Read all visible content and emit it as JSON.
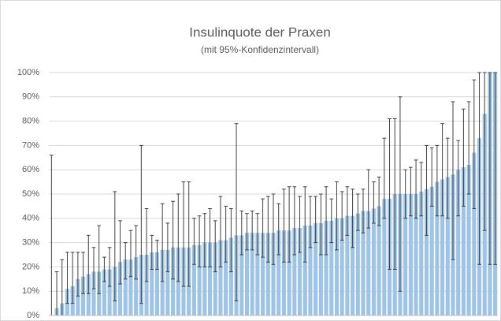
{
  "chart_data": {
    "type": "bar",
    "title": "Insulinquote der Praxen",
    "subtitle": "(mit  95%-Konfidenzintervall)",
    "color": "#9dc3e6",
    "error_color": "#404040",
    "grid": true,
    "ylim": [
      0,
      100
    ],
    "yticks": [
      {
        "value": 0,
        "label": "0%"
      },
      {
        "value": 10,
        "label": "10%"
      },
      {
        "value": 20,
        "label": "20%"
      },
      {
        "value": 30,
        "label": "30%"
      },
      {
        "value": 40,
        "label": "40%"
      },
      {
        "value": 50,
        "label": "50%"
      },
      {
        "value": 60,
        "label": "60%"
      },
      {
        "value": 70,
        "label": "70%"
      },
      {
        "value": 80,
        "label": "80%"
      },
      {
        "value": 90,
        "label": "90%"
      },
      {
        "value": 100,
        "label": "100%"
      }
    ],
    "categories": [
      null,
      null,
      null,
      null,
      null,
      null,
      null,
      null,
      null,
      null,
      null,
      null,
      null,
      null,
      null,
      null,
      null,
      null,
      null,
      null,
      null,
      null,
      null,
      null,
      null,
      null,
      null,
      null,
      null,
      null,
      null,
      null,
      null,
      null,
      null,
      null,
      null,
      null,
      null,
      null,
      null,
      null,
      null,
      null,
      null,
      null,
      null,
      null,
      null,
      null,
      null,
      null,
      null,
      null,
      null,
      null,
      null,
      null,
      null,
      null,
      null,
      null,
      null,
      null,
      null,
      null,
      null,
      null,
      null,
      null,
      null,
      null,
      null,
      null,
      null,
      null,
      null,
      null,
      null,
      null,
      null,
      null,
      null,
      null,
      null
    ],
    "values": [
      0,
      3,
      5,
      11,
      12,
      15,
      16,
      17,
      18,
      18,
      19,
      19,
      20,
      22,
      23,
      23,
      24,
      25,
      25,
      26,
      26,
      27,
      27,
      28,
      28,
      28,
      28,
      29,
      29,
      30,
      30,
      30,
      31,
      31,
      32,
      33,
      33,
      34,
      34,
      34,
      34,
      34,
      34,
      35,
      35,
      35,
      36,
      36,
      37,
      37,
      38,
      38,
      39,
      39,
      40,
      40,
      41,
      41,
      42,
      43,
      43,
      44,
      45,
      48,
      48,
      50,
      50,
      50,
      50,
      50,
      51,
      52,
      53,
      55,
      56,
      57,
      58,
      60,
      61,
      62,
      67,
      73,
      83,
      100,
      100
    ],
    "lower": [
      0,
      0,
      0,
      5,
      5,
      8,
      9,
      9,
      11,
      9,
      14,
      12,
      6,
      13,
      15,
      16,
      15,
      5,
      14,
      19,
      19,
      14,
      18,
      15,
      14,
      12,
      12,
      21,
      20,
      20,
      20,
      18,
      20,
      22,
      18,
      6,
      25,
      27,
      27,
      25,
      24,
      22,
      21,
      25,
      22,
      22,
      25,
      26,
      22,
      28,
      30,
      25,
      25,
      30,
      27,
      31,
      33,
      28,
      35,
      34,
      36,
      38,
      37,
      40,
      19,
      19,
      10,
      40,
      41,
      40,
      41,
      33,
      45,
      41,
      41,
      40,
      23,
      41,
      45,
      50,
      44,
      21,
      35,
      21,
      21
    ],
    "upper": [
      66,
      18,
      23,
      26,
      26,
      26,
      26,
      33,
      28,
      37,
      24,
      28,
      51,
      39,
      30,
      35,
      37,
      70,
      44,
      33,
      31,
      46,
      38,
      47,
      50,
      55,
      55,
      40,
      41,
      42,
      44,
      39,
      49,
      45,
      44,
      79,
      43,
      42,
      43,
      42,
      48,
      49,
      50,
      46,
      52,
      53,
      53,
      49,
      53,
      49,
      49,
      50,
      53,
      48,
      55,
      51,
      53,
      52,
      50,
      52,
      60,
      55,
      57,
      73,
      81,
      81,
      90,
      60,
      61,
      64,
      63,
      70,
      69,
      70,
      79,
      73,
      88,
      72,
      85,
      88,
      97,
      100,
      100,
      100,
      100
    ]
  }
}
